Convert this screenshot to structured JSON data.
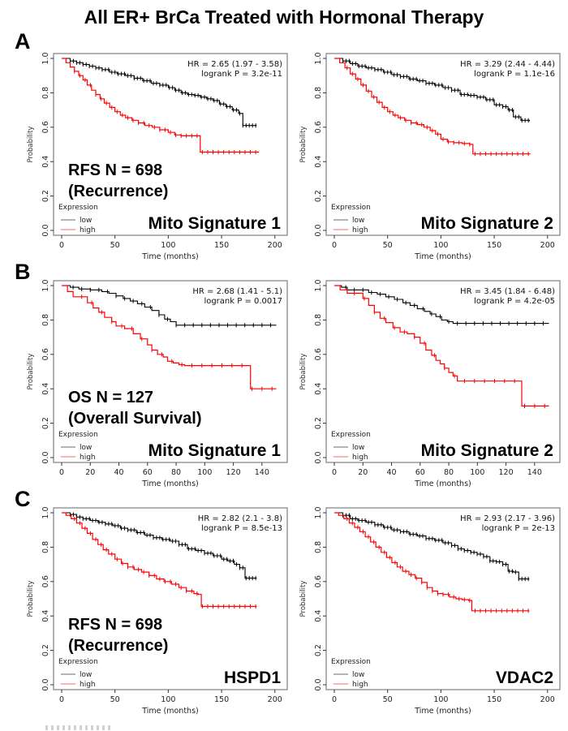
{
  "title": "All ER+ BrCa Treated with Hormonal Therapy",
  "sections": [
    {
      "label": "A"
    },
    {
      "label": "B"
    },
    {
      "label": "C"
    }
  ],
  "colors": {
    "low_curve": "#000000",
    "high_curve": "#fe0000",
    "legend_low": "#888888",
    "legend_high": "#f58a8a",
    "frame": "#8a8a8a"
  },
  "chart_data": [
    {
      "id": "a-left",
      "row": "A",
      "type": "line",
      "subtype": "kaplan-meier",
      "hr_label": "HR = 2.65 (1.97 - 3.58)",
      "logrank_label": "logrank P = 3.2e-11",
      "overlay_lines": [
        "RFS   N = 698",
        "(Recurrence)"
      ],
      "signature_label": "Mito Signature 1",
      "xlabel": "Time (months)",
      "ylabel": "Probability",
      "xmax": 204,
      "xticks": [
        0,
        50,
        100,
        150,
        200
      ],
      "yticks": [
        1.0,
        0.8,
        0.6,
        0.4,
        0.2,
        0.0
      ],
      "legend": {
        "title": "Expression",
        "entries": [
          {
            "label": "low",
            "color": "#888888"
          },
          {
            "label": "high",
            "color": "#f58a8a"
          }
        ]
      },
      "series": [
        {
          "name": "low",
          "color": "#000000",
          "tick_start": 8,
          "tick_step": 3,
          "x": [
            0,
            8,
            14,
            20,
            26,
            32,
            38,
            45,
            52,
            60,
            68,
            76,
            84,
            92,
            100,
            106,
            112,
            118,
            124,
            130,
            136,
            142,
            148,
            154,
            160,
            166,
            170,
            183
          ],
          "y": [
            1.0,
            0.985,
            0.975,
            0.965,
            0.955,
            0.945,
            0.935,
            0.92,
            0.91,
            0.9,
            0.885,
            0.87,
            0.855,
            0.845,
            0.83,
            0.815,
            0.8,
            0.79,
            0.785,
            0.775,
            0.765,
            0.755,
            0.735,
            0.72,
            0.7,
            0.68,
            0.61,
            0.61
          ]
        },
        {
          "name": "high",
          "color": "#fe0000",
          "tick_start": 12,
          "tick_step": 5,
          "x": [
            0,
            4,
            8,
            12,
            16,
            20,
            24,
            28,
            32,
            36,
            40,
            45,
            50,
            55,
            60,
            66,
            72,
            78,
            85,
            92,
            100,
            106,
            112,
            127,
            130,
            185
          ],
          "y": [
            1.0,
            0.975,
            0.95,
            0.925,
            0.9,
            0.875,
            0.845,
            0.815,
            0.79,
            0.765,
            0.74,
            0.715,
            0.69,
            0.67,
            0.655,
            0.64,
            0.625,
            0.61,
            0.6,
            0.585,
            0.57,
            0.555,
            0.55,
            0.55,
            0.455,
            0.455
          ]
        }
      ]
    },
    {
      "id": "a-right",
      "row": "A",
      "type": "line",
      "subtype": "kaplan-meier",
      "hr_label": "HR = 3.29 (2.44 - 4.44)",
      "logrank_label": "logrank P = 1.1e-16",
      "overlay_lines": [],
      "signature_label": "Mito Signature 2",
      "xlabel": "Time (months)",
      "ylabel": "Probability",
      "xmax": 204,
      "xticks": [
        0,
        50,
        100,
        150,
        200
      ],
      "yticks": [
        1.0,
        0.8,
        0.6,
        0.4,
        0.2,
        0.0
      ],
      "legend": {
        "title": "Expression",
        "entries": [
          {
            "label": "low",
            "color": "#888888"
          },
          {
            "label": "high",
            "color": "#f58a8a"
          }
        ]
      },
      "series": [
        {
          "name": "low",
          "color": "#000000",
          "tick_start": 8,
          "tick_step": 3,
          "x": [
            0,
            8,
            15,
            22,
            30,
            38,
            46,
            54,
            62,
            70,
            78,
            86,
            94,
            102,
            110,
            118,
            126,
            134,
            142,
            150,
            158,
            163,
            168,
            175,
            183
          ],
          "y": [
            1.0,
            0.985,
            0.97,
            0.955,
            0.945,
            0.935,
            0.92,
            0.905,
            0.895,
            0.88,
            0.87,
            0.855,
            0.845,
            0.83,
            0.815,
            0.79,
            0.785,
            0.775,
            0.76,
            0.73,
            0.72,
            0.7,
            0.66,
            0.64,
            0.635
          ]
        },
        {
          "name": "high",
          "color": "#fe0000",
          "tick_start": 12,
          "tick_step": 5,
          "x": [
            0,
            5,
            10,
            15,
            20,
            25,
            30,
            35,
            40,
            45,
            50,
            55,
            60,
            66,
            72,
            78,
            84,
            90,
            95,
            100,
            106,
            112,
            120,
            127,
            130,
            184
          ],
          "y": [
            1.0,
            0.975,
            0.945,
            0.91,
            0.88,
            0.845,
            0.81,
            0.775,
            0.745,
            0.715,
            0.69,
            0.67,
            0.655,
            0.64,
            0.625,
            0.615,
            0.6,
            0.58,
            0.56,
            0.53,
            0.515,
            0.51,
            0.505,
            0.5,
            0.445,
            0.445
          ]
        }
      ]
    },
    {
      "id": "b-left",
      "row": "B",
      "type": "line",
      "subtype": "kaplan-meier",
      "hr_label": "HR = 2.68 (1.41 - 5.1)",
      "logrank_label": "logrank P = 0.0017",
      "overlay_lines": [
        "OS   N = 127",
        "(Overall Survival)"
      ],
      "signature_label": "Mito Signature 1",
      "xlabel": "Time (months)",
      "ylabel": "Probability",
      "xmax": 152,
      "xticks": [
        0,
        20,
        40,
        60,
        80,
        100,
        120,
        140
      ],
      "yticks": [
        1.0,
        0.8,
        0.6,
        0.4,
        0.2,
        0.0
      ],
      "legend": {
        "title": "Expression",
        "entries": [
          {
            "label": "low",
            "color": "#888888"
          },
          {
            "label": "high",
            "color": "#f58a8a"
          }
        ]
      },
      "series": [
        {
          "name": "low",
          "color": "#000000",
          "tick_start": 8,
          "tick_step": 6,
          "x": [
            0,
            6,
            12,
            20,
            28,
            33,
            38,
            43,
            48,
            53,
            58,
            63,
            68,
            72,
            76,
            80,
            150
          ],
          "y": [
            1.0,
            0.99,
            0.98,
            0.975,
            0.965,
            0.955,
            0.94,
            0.925,
            0.91,
            0.895,
            0.875,
            0.855,
            0.83,
            0.805,
            0.79,
            0.77,
            0.77
          ]
        },
        {
          "name": "high",
          "color": "#fe0000",
          "tick_start": 14,
          "tick_step": 7,
          "x": [
            0,
            4,
            8,
            18,
            22,
            26,
            30,
            35,
            38,
            44,
            50,
            55,
            60,
            63,
            67,
            71,
            74,
            78,
            82,
            86,
            130,
            132,
            150
          ],
          "y": [
            1.0,
            0.965,
            0.935,
            0.9,
            0.87,
            0.845,
            0.815,
            0.79,
            0.765,
            0.75,
            0.72,
            0.69,
            0.655,
            0.625,
            0.6,
            0.585,
            0.56,
            0.55,
            0.54,
            0.535,
            0.535,
            0.4,
            0.4
          ]
        }
      ]
    },
    {
      "id": "b-right",
      "row": "B",
      "type": "line",
      "subtype": "kaplan-meier",
      "hr_label": "HR = 3.45 (1.84 - 6.48)",
      "logrank_label": "logrank P = 4.2e-05",
      "overlay_lines": [],
      "signature_label": "Mito Signature 2",
      "xlabel": "Time (months)",
      "ylabel": "Probability",
      "xmax": 152,
      "xticks": [
        0,
        20,
        40,
        60,
        80,
        100,
        120,
        140
      ],
      "yticks": [
        1.0,
        0.8,
        0.6,
        0.4,
        0.2,
        0.0
      ],
      "legend": {
        "title": "Expression",
        "entries": [
          {
            "label": "low",
            "color": "#888888"
          },
          {
            "label": "high",
            "color": "#f58a8a"
          }
        ]
      },
      "series": [
        {
          "name": "low",
          "color": "#000000",
          "tick_start": 8,
          "tick_step": 6,
          "x": [
            0,
            5,
            9,
            20,
            24,
            30,
            36,
            42,
            48,
            53,
            58,
            63,
            67,
            71,
            75,
            79,
            83,
            150
          ],
          "y": [
            1.0,
            0.99,
            0.975,
            0.975,
            0.96,
            0.95,
            0.935,
            0.92,
            0.9,
            0.885,
            0.865,
            0.85,
            0.835,
            0.82,
            0.8,
            0.79,
            0.78,
            0.78
          ]
        },
        {
          "name": "high",
          "color": "#fe0000",
          "tick_start": 14,
          "tick_step": 7,
          "x": [
            0,
            4,
            9,
            20,
            24,
            28,
            32,
            36,
            41,
            46,
            51,
            56,
            60,
            64,
            68,
            71,
            74,
            77,
            80,
            83,
            86,
            128,
            131,
            150
          ],
          "y": [
            1.0,
            0.975,
            0.955,
            0.925,
            0.885,
            0.845,
            0.81,
            0.785,
            0.755,
            0.73,
            0.72,
            0.7,
            0.665,
            0.625,
            0.595,
            0.565,
            0.545,
            0.52,
            0.495,
            0.475,
            0.445,
            0.445,
            0.3,
            0.3
          ]
        }
      ]
    },
    {
      "id": "c-left",
      "row": "C",
      "type": "line",
      "subtype": "kaplan-meier",
      "hr_label": "HR = 2.82 (2.1 - 3.8)",
      "logrank_label": "logrank P = 8.5e-13",
      "overlay_lines": [
        "RFS   N = 698",
        "(Recurrence)"
      ],
      "signature_label": "HSPD1",
      "xlabel": "Time (months)",
      "ylabel": "Probability",
      "xmax": 204,
      "xticks": [
        0,
        50,
        100,
        150,
        200
      ],
      "yticks": [
        1.0,
        0.8,
        0.6,
        0.4,
        0.2,
        0.0
      ],
      "legend": {
        "title": "Expression",
        "entries": [
          {
            "label": "low",
            "color": "#888888"
          },
          {
            "label": "high",
            "color": "#f58a8a"
          }
        ]
      },
      "series": [
        {
          "name": "low",
          "color": "#000000",
          "tick_start": 8,
          "tick_step": 3,
          "x": [
            0,
            8,
            14,
            20,
            27,
            34,
            41,
            48,
            55,
            62,
            70,
            78,
            86,
            94,
            102,
            110,
            118,
            126,
            134,
            142,
            150,
            156,
            162,
            167,
            172,
            183
          ],
          "y": [
            1.0,
            0.99,
            0.975,
            0.965,
            0.955,
            0.945,
            0.935,
            0.925,
            0.91,
            0.9,
            0.885,
            0.87,
            0.855,
            0.845,
            0.835,
            0.815,
            0.79,
            0.78,
            0.765,
            0.75,
            0.73,
            0.72,
            0.7,
            0.68,
            0.62,
            0.62
          ]
        },
        {
          "name": "high",
          "color": "#fe0000",
          "tick_start": 12,
          "tick_step": 5,
          "x": [
            0,
            4,
            9,
            14,
            19,
            24,
            29,
            34,
            39,
            44,
            50,
            56,
            62,
            68,
            75,
            82,
            89,
            96,
            103,
            110,
            117,
            124,
            128,
            131,
            183
          ],
          "y": [
            1.0,
            0.985,
            0.965,
            0.94,
            0.91,
            0.88,
            0.845,
            0.815,
            0.785,
            0.76,
            0.73,
            0.705,
            0.685,
            0.67,
            0.655,
            0.635,
            0.615,
            0.6,
            0.585,
            0.565,
            0.545,
            0.53,
            0.525,
            0.455,
            0.455
          ]
        }
      ]
    },
    {
      "id": "c-right",
      "row": "C",
      "type": "line",
      "subtype": "kaplan-meier",
      "hr_label": "HR = 2.93 (2.17 - 3.96)",
      "logrank_label": "logrank P = 2e-13",
      "overlay_lines": [],
      "signature_label": "VDAC2",
      "xlabel": "Time (months)",
      "ylabel": "Probability",
      "xmax": 204,
      "xticks": [
        0,
        50,
        100,
        150,
        200
      ],
      "yticks": [
        1.0,
        0.8,
        0.6,
        0.4,
        0.2,
        0.0
      ],
      "legend": {
        "title": "Expression",
        "entries": [
          {
            "label": "low",
            "color": "#888888"
          },
          {
            "label": "high",
            "color": "#f58a8a"
          }
        ]
      },
      "series": [
        {
          "name": "low",
          "color": "#000000",
          "tick_start": 8,
          "tick_step": 3,
          "x": [
            0,
            8,
            15,
            22,
            30,
            38,
            46,
            54,
            62,
            70,
            78,
            86,
            94,
            102,
            110,
            116,
            122,
            128,
            134,
            140,
            146,
            152,
            158,
            163,
            168,
            173,
            183
          ],
          "y": [
            1.0,
            0.985,
            0.965,
            0.955,
            0.945,
            0.93,
            0.915,
            0.9,
            0.89,
            0.875,
            0.865,
            0.85,
            0.84,
            0.825,
            0.81,
            0.79,
            0.78,
            0.77,
            0.76,
            0.745,
            0.72,
            0.715,
            0.7,
            0.66,
            0.655,
            0.615,
            0.615
          ]
        },
        {
          "name": "high",
          "color": "#fe0000",
          "tick_start": 12,
          "tick_step": 5,
          "x": [
            0,
            4,
            9,
            14,
            19,
            24,
            29,
            34,
            39,
            44,
            49,
            54,
            59,
            64,
            70,
            76,
            82,
            87,
            92,
            97,
            102,
            108,
            114,
            120,
            126,
            129,
            183
          ],
          "y": [
            1.0,
            0.985,
            0.965,
            0.94,
            0.915,
            0.89,
            0.86,
            0.83,
            0.8,
            0.77,
            0.74,
            0.71,
            0.685,
            0.66,
            0.64,
            0.62,
            0.595,
            0.565,
            0.545,
            0.53,
            0.525,
            0.51,
            0.5,
            0.495,
            0.49,
            0.43,
            0.43
          ]
        }
      ]
    }
  ]
}
